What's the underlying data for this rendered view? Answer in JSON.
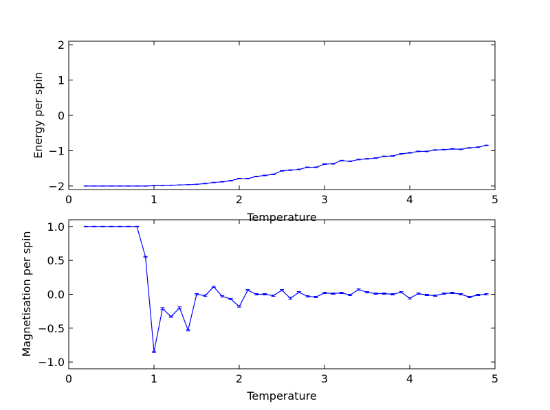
{
  "chart_data": [
    {
      "type": "line",
      "title": "",
      "xlabel": "Temperature",
      "ylabel": "Energy per spin",
      "xlim": [
        0,
        5
      ],
      "ylim": [
        -2.1,
        2.1
      ],
      "xticks": [
        "0",
        "1",
        "2",
        "3",
        "4",
        "5"
      ],
      "yticks": [
        "2",
        "1",
        "0",
        "−1",
        "−2"
      ],
      "grid": false,
      "color": "#0000ff",
      "x": [
        0.2,
        0.3,
        0.4,
        0.5,
        0.6,
        0.7,
        0.8,
        0.9,
        1.0,
        1.1,
        1.2,
        1.3,
        1.4,
        1.5,
        1.6,
        1.7,
        1.8,
        1.9,
        2.0,
        2.1,
        2.2,
        2.3,
        2.4,
        2.5,
        2.6,
        2.7,
        2.8,
        2.9,
        3.0,
        3.1,
        3.2,
        3.3,
        3.4,
        3.5,
        3.6,
        3.7,
        3.8,
        3.9,
        4.0,
        4.1,
        4.2,
        4.3,
        4.4,
        4.5,
        4.6,
        4.7,
        4.8,
        4.9
      ],
      "series": [
        {
          "values": [
            -2.0,
            -2.0,
            -2.0,
            -2.0,
            -2.0,
            -2.0,
            -2.0,
            -2.0,
            -1.99,
            -1.99,
            -1.98,
            -1.97,
            -1.96,
            -1.95,
            -1.93,
            -1.9,
            -1.88,
            -1.85,
            -1.79,
            -1.79,
            -1.73,
            -1.7,
            -1.67,
            -1.57,
            -1.55,
            -1.53,
            -1.47,
            -1.47,
            -1.38,
            -1.37,
            -1.28,
            -1.3,
            -1.25,
            -1.23,
            -1.21,
            -1.16,
            -1.15,
            -1.09,
            -1.06,
            -1.02,
            -1.02,
            -0.98,
            -0.97,
            -0.95,
            -0.96,
            -0.92,
            -0.9,
            -0.85
          ],
          "errors": [
            0.005,
            0.005,
            0.005,
            0.005,
            0.005,
            0.005,
            0.005,
            0.005,
            0.005,
            0.005,
            0.005,
            0.005,
            0.005,
            0.005,
            0.008,
            0.008,
            0.008,
            0.01,
            0.01,
            0.01,
            0.01,
            0.01,
            0.01,
            0.01,
            0.01,
            0.01,
            0.01,
            0.01,
            0.01,
            0.01,
            0.01,
            0.01,
            0.01,
            0.01,
            0.01,
            0.01,
            0.01,
            0.01,
            0.01,
            0.01,
            0.01,
            0.01,
            0.01,
            0.01,
            0.01,
            0.01,
            0.01,
            0.01
          ]
        }
      ]
    },
    {
      "type": "line",
      "title": "",
      "xlabel": "Temperature",
      "ylabel": "Magnetisation per spin",
      "xlim": [
        0,
        5
      ],
      "ylim": [
        -1.1,
        1.1
      ],
      "xticks": [
        "0",
        "1",
        "2",
        "3",
        "4",
        "5"
      ],
      "yticks": [
        "1.0",
        "0.5",
        "0.0",
        "−0.5",
        "−1.0"
      ],
      "grid": false,
      "color": "#0000ff",
      "x": [
        0.2,
        0.3,
        0.4,
        0.5,
        0.6,
        0.7,
        0.8,
        0.9,
        1.0,
        1.1,
        1.2,
        1.3,
        1.4,
        1.5,
        1.6,
        1.7,
        1.8,
        1.9,
        2.0,
        2.1,
        2.2,
        2.3,
        2.4,
        2.5,
        2.6,
        2.7,
        2.8,
        2.9,
        3.0,
        3.1,
        3.2,
        3.3,
        3.4,
        3.5,
        3.6,
        3.7,
        3.8,
        3.9,
        4.0,
        4.1,
        4.2,
        4.3,
        4.4,
        4.5,
        4.6,
        4.7,
        4.8,
        4.9
      ],
      "series": [
        {
          "values": [
            1.0,
            1.0,
            1.0,
            1.0,
            1.0,
            1.0,
            1.0,
            0.55,
            -0.85,
            -0.21,
            -0.33,
            -0.2,
            -0.53,
            0.0,
            -0.02,
            0.11,
            -0.03,
            -0.07,
            -0.18,
            0.06,
            0.0,
            0.0,
            -0.02,
            0.06,
            -0.06,
            0.03,
            -0.03,
            -0.04,
            0.02,
            0.01,
            0.02,
            -0.01,
            0.07,
            0.03,
            0.01,
            0.01,
            0.0,
            0.03,
            -0.06,
            0.01,
            -0.01,
            -0.02,
            0.01,
            0.02,
            0.0,
            -0.04,
            -0.01,
            0.0
          ],
          "errors": [
            0.005,
            0.005,
            0.005,
            0.005,
            0.005,
            0.005,
            0.005,
            0.01,
            0.01,
            0.015,
            0.01,
            0.015,
            0.01,
            0.01,
            0.01,
            0.01,
            0.01,
            0.01,
            0.01,
            0.01,
            0.01,
            0.01,
            0.01,
            0.01,
            0.015,
            0.01,
            0.01,
            0.01,
            0.01,
            0.01,
            0.01,
            0.01,
            0.01,
            0.01,
            0.01,
            0.01,
            0.01,
            0.01,
            0.01,
            0.01,
            0.01,
            0.01,
            0.01,
            0.01,
            0.01,
            0.01,
            0.01,
            0.01
          ]
        }
      ]
    }
  ]
}
